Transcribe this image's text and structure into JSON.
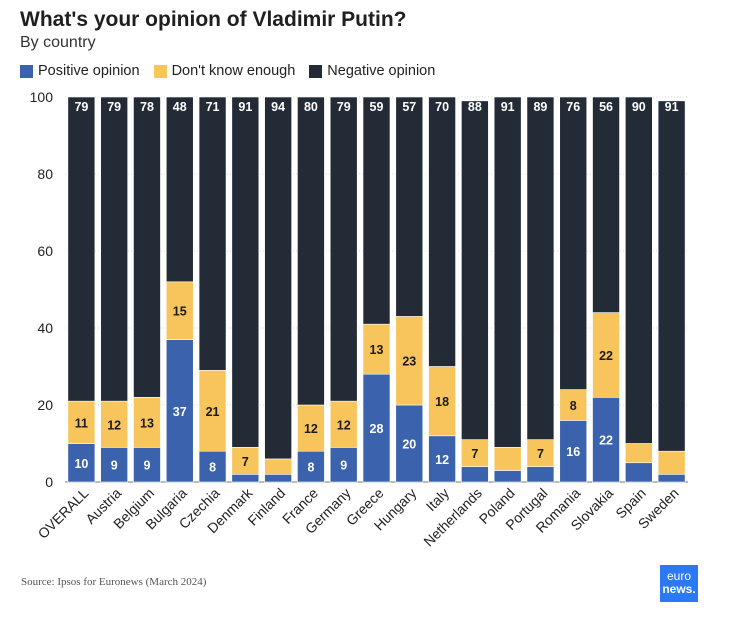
{
  "title": "What's your opinion of Vladimir Putin?",
  "subtitle": "By country",
  "source": "Source: Ipsos for Euronews (March 2024)",
  "logo": {
    "line1": "euro",
    "line2": "news."
  },
  "chart_data": {
    "type": "bar",
    "stacked": true,
    "title": "What's your opinion of Vladimir Putin?",
    "subtitle": "By country",
    "categories": [
      "OVERALL",
      "Austria",
      "Belgium",
      "Bulgaria",
      "Czechia",
      "Denmark",
      "Finland",
      "France",
      "Germany",
      "Greece",
      "Hungary",
      "Italy",
      "Netherlands",
      "Poland",
      "Portugal",
      "Romania",
      "Slovakia",
      "Spain",
      "Sweden"
    ],
    "series": [
      {
        "name": "Positive opinion",
        "color": "#3a62ad",
        "values": [
          10,
          9,
          9,
          37,
          8,
          2,
          2,
          8,
          9,
          28,
          20,
          12,
          4,
          3,
          4,
          16,
          22,
          5,
          2
        ],
        "labels": [
          "10",
          "9",
          "9",
          "37",
          "8",
          "",
          "",
          "8",
          "9",
          "28",
          "20",
          "12",
          "",
          "",
          "",
          "16",
          "22",
          "",
          ""
        ]
      },
      {
        "name": "Don't know enough",
        "color": "#f7c55b",
        "values": [
          11,
          12,
          13,
          15,
          21,
          7,
          4,
          12,
          12,
          13,
          23,
          18,
          7,
          6,
          7,
          8,
          22,
          5,
          6
        ],
        "labels": [
          "11",
          "12",
          "13",
          "15",
          "21",
          "7",
          "",
          "12",
          "12",
          "13",
          "23",
          "18",
          "7",
          "",
          "7",
          "8",
          "22",
          "",
          ""
        ]
      },
      {
        "name": "Negative opinion",
        "color": "#232b36",
        "values": [
          79,
          79,
          78,
          48,
          71,
          91,
          94,
          80,
          79,
          59,
          57,
          70,
          88,
          91,
          89,
          76,
          56,
          90,
          91
        ],
        "labels": [
          "79",
          "79",
          "78",
          "48",
          "71",
          "91",
          "94",
          "80",
          "79",
          "59",
          "57",
          "70",
          "88",
          "91",
          "89",
          "76",
          "56",
          "90",
          "91"
        ]
      }
    ],
    "ylim": [
      0,
      100
    ],
    "yticks": [
      "0",
      "20",
      "40",
      "60",
      "80",
      "100"
    ],
    "grid": true,
    "legend_position": "top-left"
  }
}
